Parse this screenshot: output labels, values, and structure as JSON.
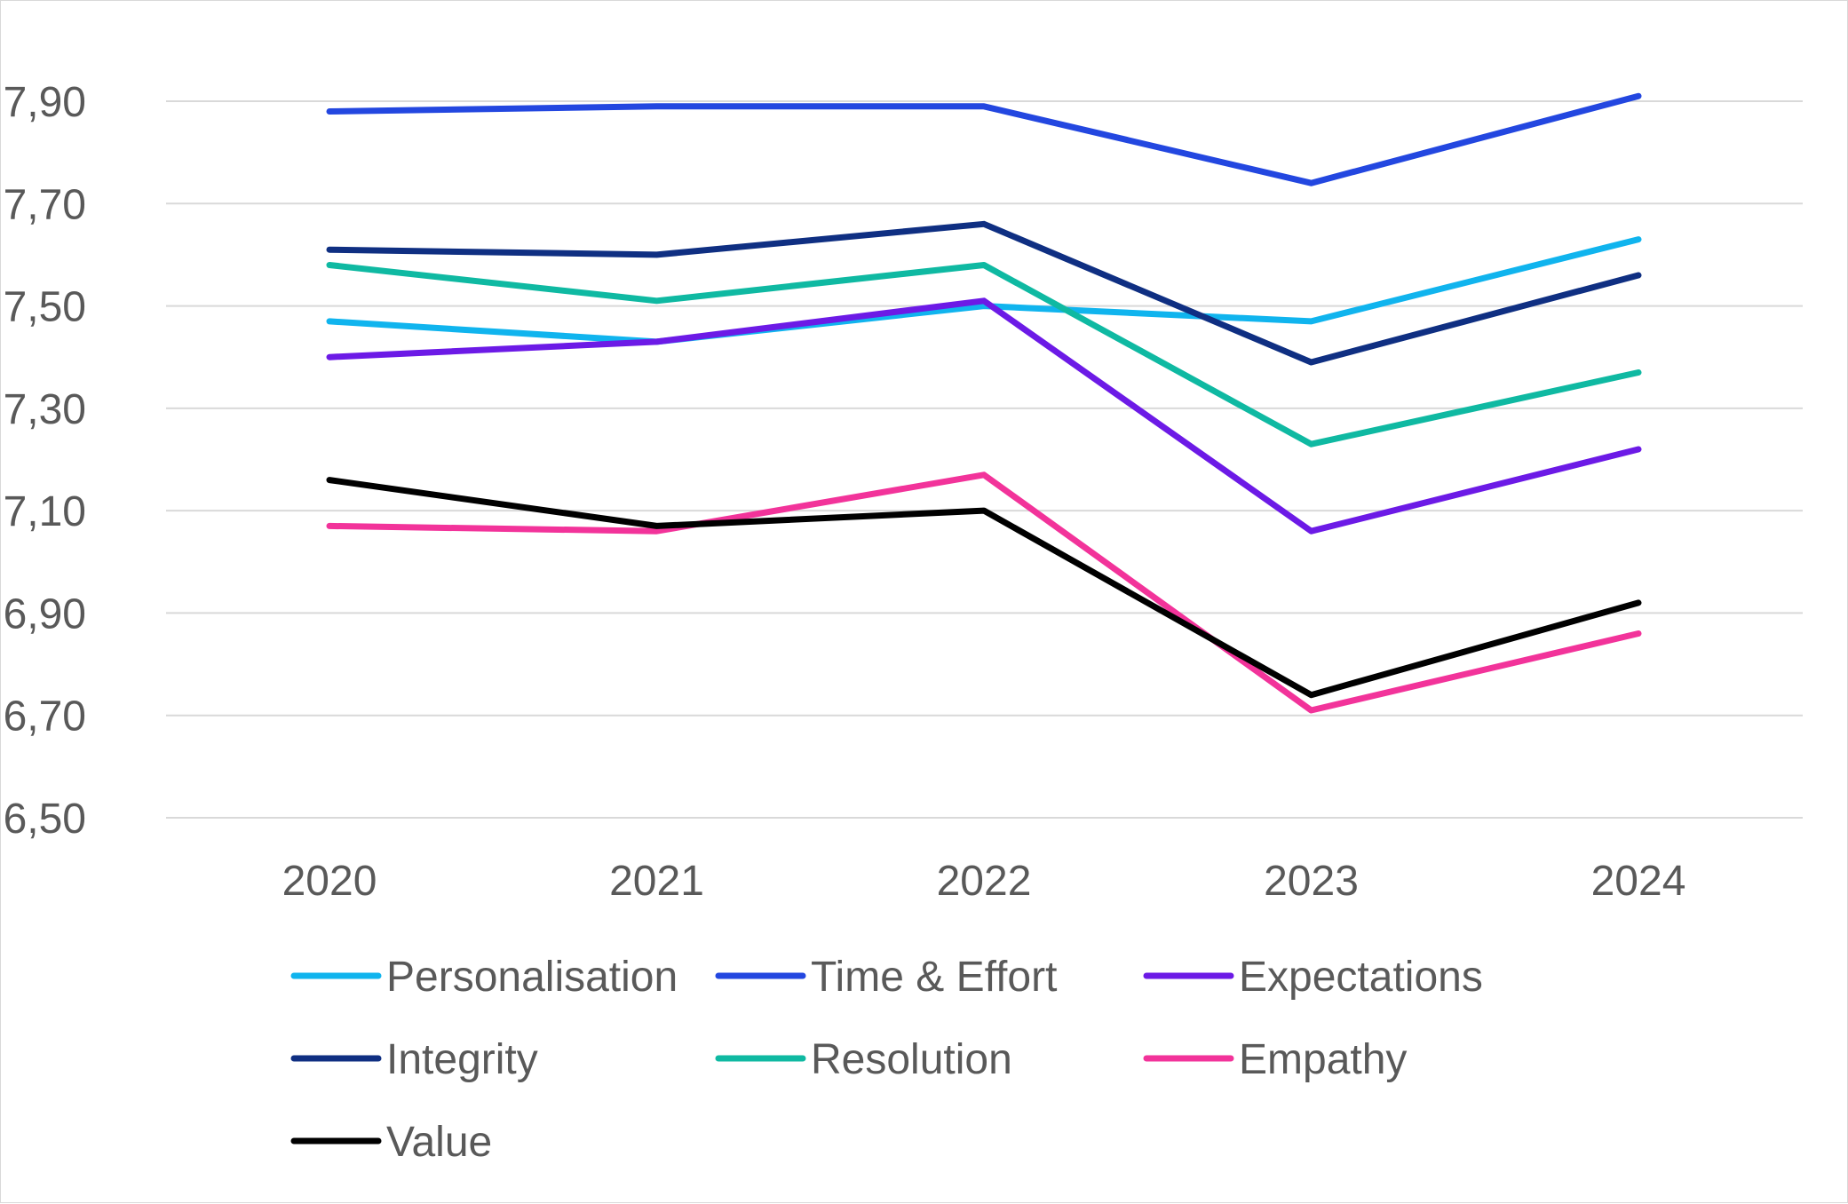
{
  "chart_data": {
    "type": "line",
    "title": "",
    "xlabel": "",
    "ylabel": "",
    "categories": [
      "2020",
      "2021",
      "2022",
      "2023",
      "2024"
    ],
    "ylim": [
      6.5,
      8.0
    ],
    "yticks": [
      6.5,
      6.7,
      6.9,
      7.1,
      7.3,
      7.5,
      7.7,
      7.9
    ],
    "ytick_labels": [
      "6,50",
      "6,70",
      "6,90",
      "7,10",
      "7,30",
      "7,50",
      "7,70",
      "7,90"
    ],
    "grid": true,
    "legend_position": "bottom",
    "series": [
      {
        "name": "Personalisation",
        "color": "#10b4ee",
        "values": [
          7.47,
          7.43,
          7.5,
          7.47,
          7.63
        ]
      },
      {
        "name": "Time & Effort",
        "color": "#2347e0",
        "values": [
          7.88,
          7.89,
          7.89,
          7.74,
          7.91
        ]
      },
      {
        "name": "Expectations",
        "color": "#6c1ae6",
        "values": [
          7.4,
          7.43,
          7.51,
          7.06,
          7.22
        ]
      },
      {
        "name": "Integrity",
        "color": "#0f2f82",
        "values": [
          7.61,
          7.6,
          7.66,
          7.39,
          7.56
        ]
      },
      {
        "name": "Resolution",
        "color": "#0fb9a2",
        "values": [
          7.58,
          7.51,
          7.58,
          7.23,
          7.37
        ]
      },
      {
        "name": "Empathy",
        "color": "#f2339a",
        "values": [
          7.07,
          7.06,
          7.17,
          6.71,
          6.86
        ]
      },
      {
        "name": "Value",
        "color": "#000000",
        "values": [
          7.16,
          7.07,
          7.1,
          6.74,
          6.92
        ]
      }
    ]
  }
}
